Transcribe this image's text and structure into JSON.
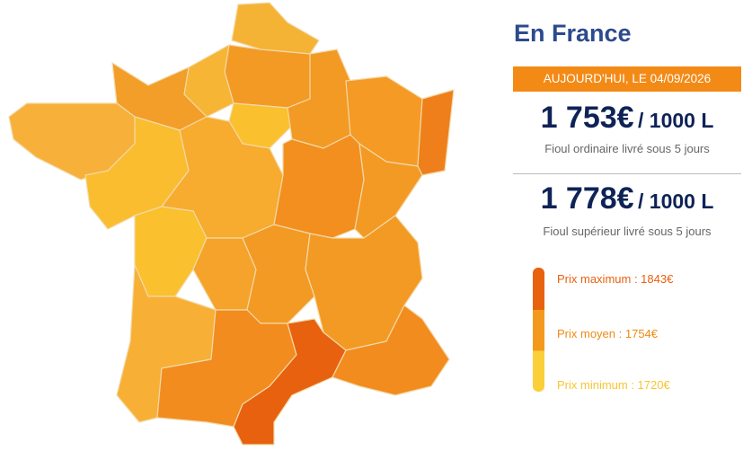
{
  "header": {
    "title": "En France",
    "date": "AUJOURD'HUI, LE 04/09/2026"
  },
  "prices": [
    {
      "amount": "1 753€",
      "unit": "/ 1000 L",
      "description": "Fioul ordinaire livré sous 5 jours"
    },
    {
      "amount": "1 778€",
      "unit": "/ 1000 L",
      "description": "Fioul supérieur livré sous 5 jours"
    }
  ],
  "legend": [
    "Prix maximum : 1843€",
    "Prix moyen : 1754€",
    "Prix minimum : 1720€"
  ]
}
